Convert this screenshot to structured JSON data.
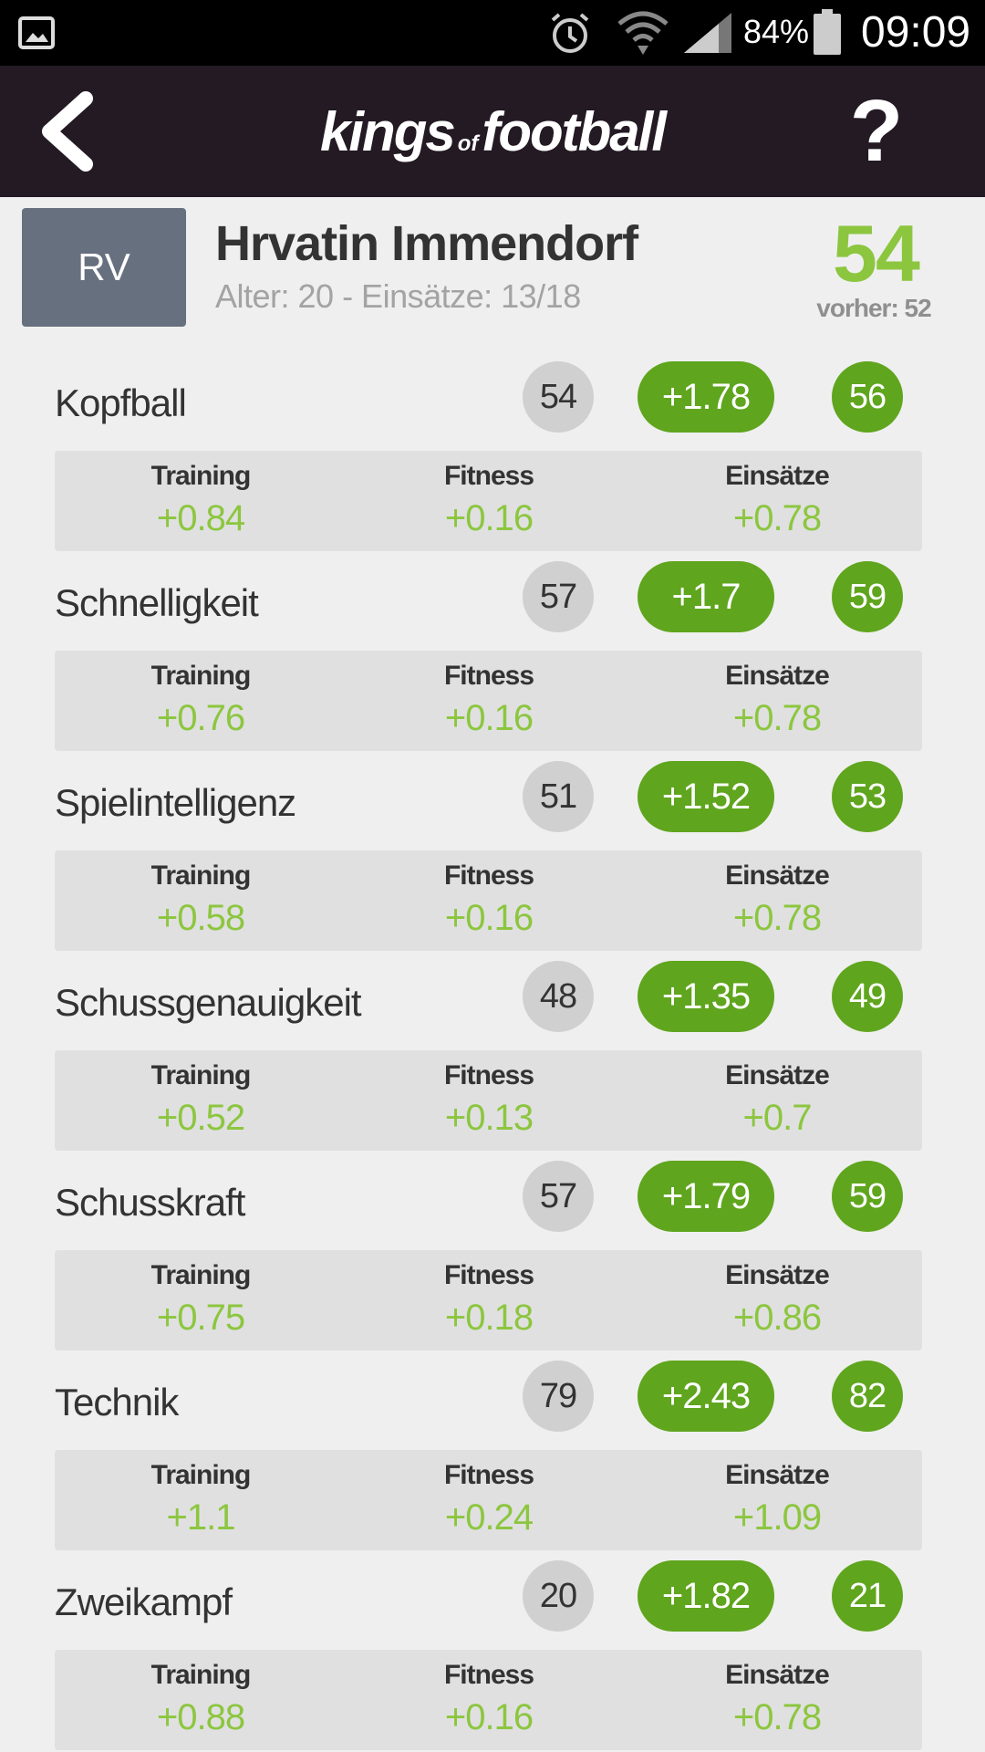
{
  "status_bar": {
    "battery_percent": "84%",
    "time": "09:09",
    "icons": [
      "gallery-icon",
      "alarm-icon",
      "wifi-icon",
      "signal-icon",
      "battery-icon"
    ]
  },
  "header": {
    "logo_kings": "kings",
    "logo_of": "of",
    "logo_football": "football",
    "help_label": "?"
  },
  "player": {
    "position": "RV",
    "name": "Hrvatin Immendorf",
    "meta": "Alter: 20 - Einsätze: 13/18",
    "rating": "54",
    "previous": "vorher: 52"
  },
  "labels": {
    "training": "Training",
    "fitness": "Fitness",
    "einsaetze": "Einsätze"
  },
  "colors": {
    "accent_green": "#8cc63f",
    "pill_green": "#5fa51d",
    "header_bg": "#231a24",
    "badge_bg": "#67707f"
  },
  "stats": [
    {
      "name": "Kopfball",
      "base": "54",
      "delta": "+1.78",
      "new": "56",
      "training": "+0.84",
      "fitness": "+0.16",
      "einsaetze": "+0.78"
    },
    {
      "name": "Schnelligkeit",
      "base": "57",
      "delta": "+1.7",
      "new": "59",
      "training": "+0.76",
      "fitness": "+0.16",
      "einsaetze": "+0.78"
    },
    {
      "name": "Spielintelligenz",
      "base": "51",
      "delta": "+1.52",
      "new": "53",
      "training": "+0.58",
      "fitness": "+0.16",
      "einsaetze": "+0.78"
    },
    {
      "name": "Schussgenauigkeit",
      "base": "48",
      "delta": "+1.35",
      "new": "49",
      "training": "+0.52",
      "fitness": "+0.13",
      "einsaetze": "+0.7"
    },
    {
      "name": "Schusskraft",
      "base": "57",
      "delta": "+1.79",
      "new": "59",
      "training": "+0.75",
      "fitness": "+0.18",
      "einsaetze": "+0.86"
    },
    {
      "name": "Technik",
      "base": "79",
      "delta": "+2.43",
      "new": "82",
      "training": "+1.1",
      "fitness": "+0.24",
      "einsaetze": "+1.09"
    },
    {
      "name": "Zweikampf",
      "base": "20",
      "delta": "+1.82",
      "new": "21",
      "training": "+0.88",
      "fitness": "+0.16",
      "einsaetze": "+0.78"
    }
  ]
}
